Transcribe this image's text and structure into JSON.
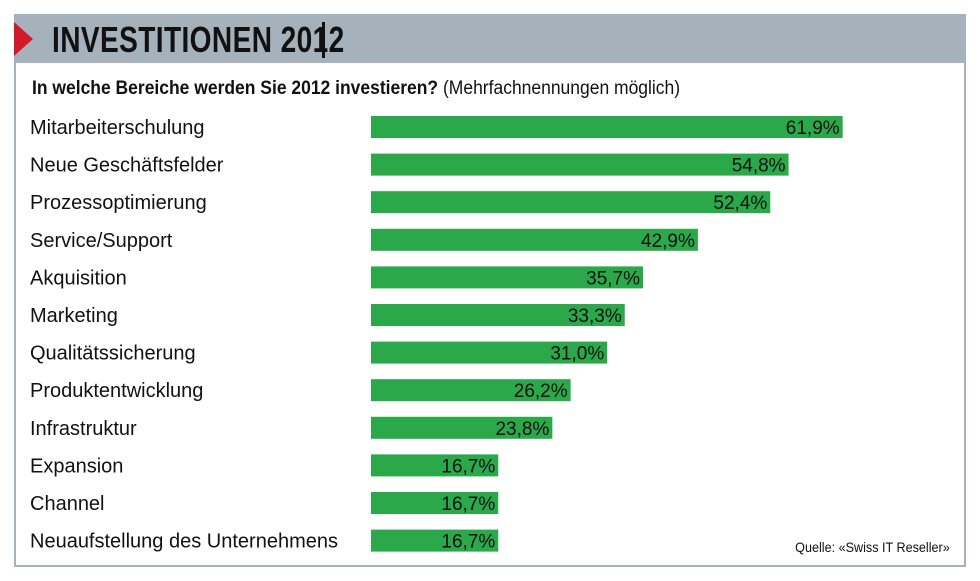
{
  "header": {
    "title": "INVESTITIONEN 2012"
  },
  "question": {
    "bold": "In welche Bereiche werden Sie 2012 investieren?",
    "normal": "(Mehrfachnennungen möglich)"
  },
  "source": "Quelle: «Swiss IT Reseller»",
  "colors": {
    "bar": "#2aa84a",
    "header_band": "#a6b2bb",
    "arrow": "#d31a2a"
  },
  "chart_data": {
    "type": "bar",
    "orientation": "horizontal",
    "categories": [
      "Mitarbeiterschulung",
      "Neue Geschäftsfelder",
      "Prozessoptimierung",
      "Service/Support",
      "Akquisition",
      "Marketing",
      "Qualitätssicherung",
      "Produktentwicklung",
      "Infrastruktur",
      "Expansion",
      "Channel",
      "Neuaufstellung des Unternehmens"
    ],
    "values": [
      61.9,
      54.8,
      52.4,
      42.9,
      35.7,
      33.3,
      31.0,
      26.2,
      23.8,
      16.7,
      16.7,
      16.7
    ],
    "value_labels": [
      "61,9%",
      "54,8%",
      "52,4%",
      "42,9%",
      "35,7%",
      "33,3%",
      "31,0%",
      "26,2%",
      "23,8%",
      "16,7%",
      "16,7%",
      "16,7%"
    ],
    "title": "INVESTITIONEN 2012",
    "xlabel": "",
    "ylabel": "",
    "unit": "%",
    "grid": false,
    "legend": "none"
  }
}
